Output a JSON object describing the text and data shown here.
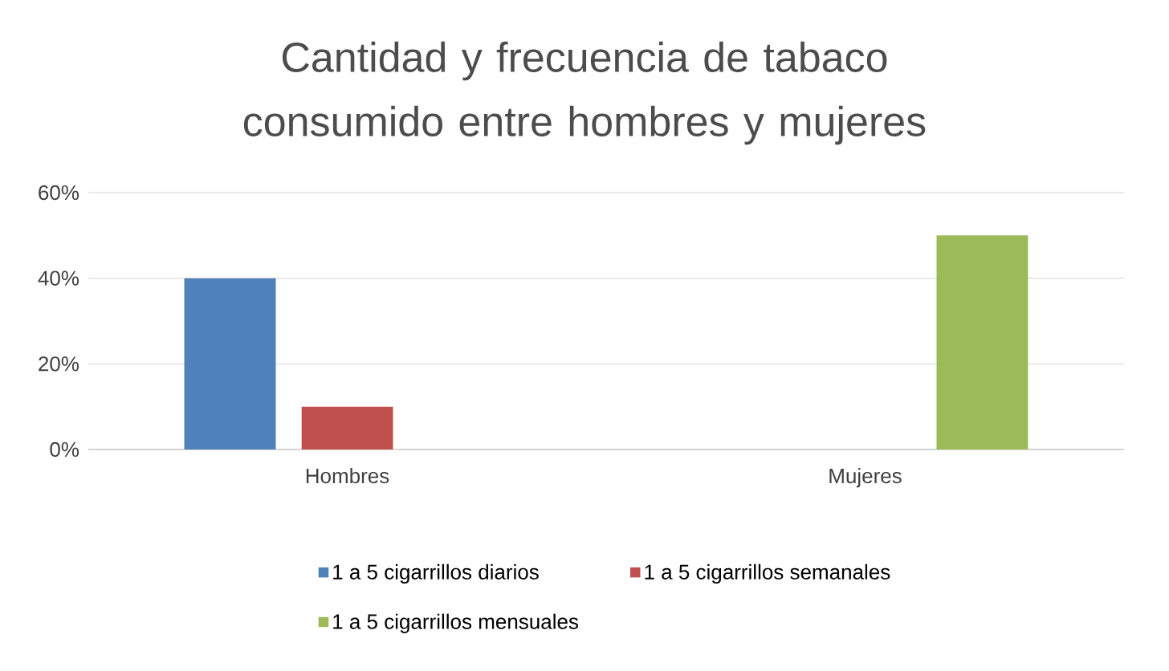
{
  "chart_data": {
    "type": "bar",
    "title": "Cantidad y frecuencia de tabaco consumido entre hombres y mujeres",
    "categories": [
      "Hombres",
      "Mujeres"
    ],
    "series": [
      {
        "name": "1 a 5 cigarrillos diarios",
        "color": "#4f81bd",
        "values": [
          40,
          0
        ]
      },
      {
        "name": "1 a 5 cigarrillos semanales",
        "color": "#c0504d",
        "values": [
          10,
          0
        ]
      },
      {
        "name": "1 a 5 cigarrillos mensuales",
        "color": "#9bbb59",
        "values": [
          0,
          50
        ]
      }
    ],
    "ylim": [
      0,
      60
    ],
    "yticks": [
      {
        "value": 0,
        "label": "0%"
      },
      {
        "value": 20,
        "label": "20%"
      },
      {
        "value": 40,
        "label": "40%"
      },
      {
        "value": 60,
        "label": "60%"
      }
    ],
    "grid": "y",
    "legend": "bottom"
  }
}
